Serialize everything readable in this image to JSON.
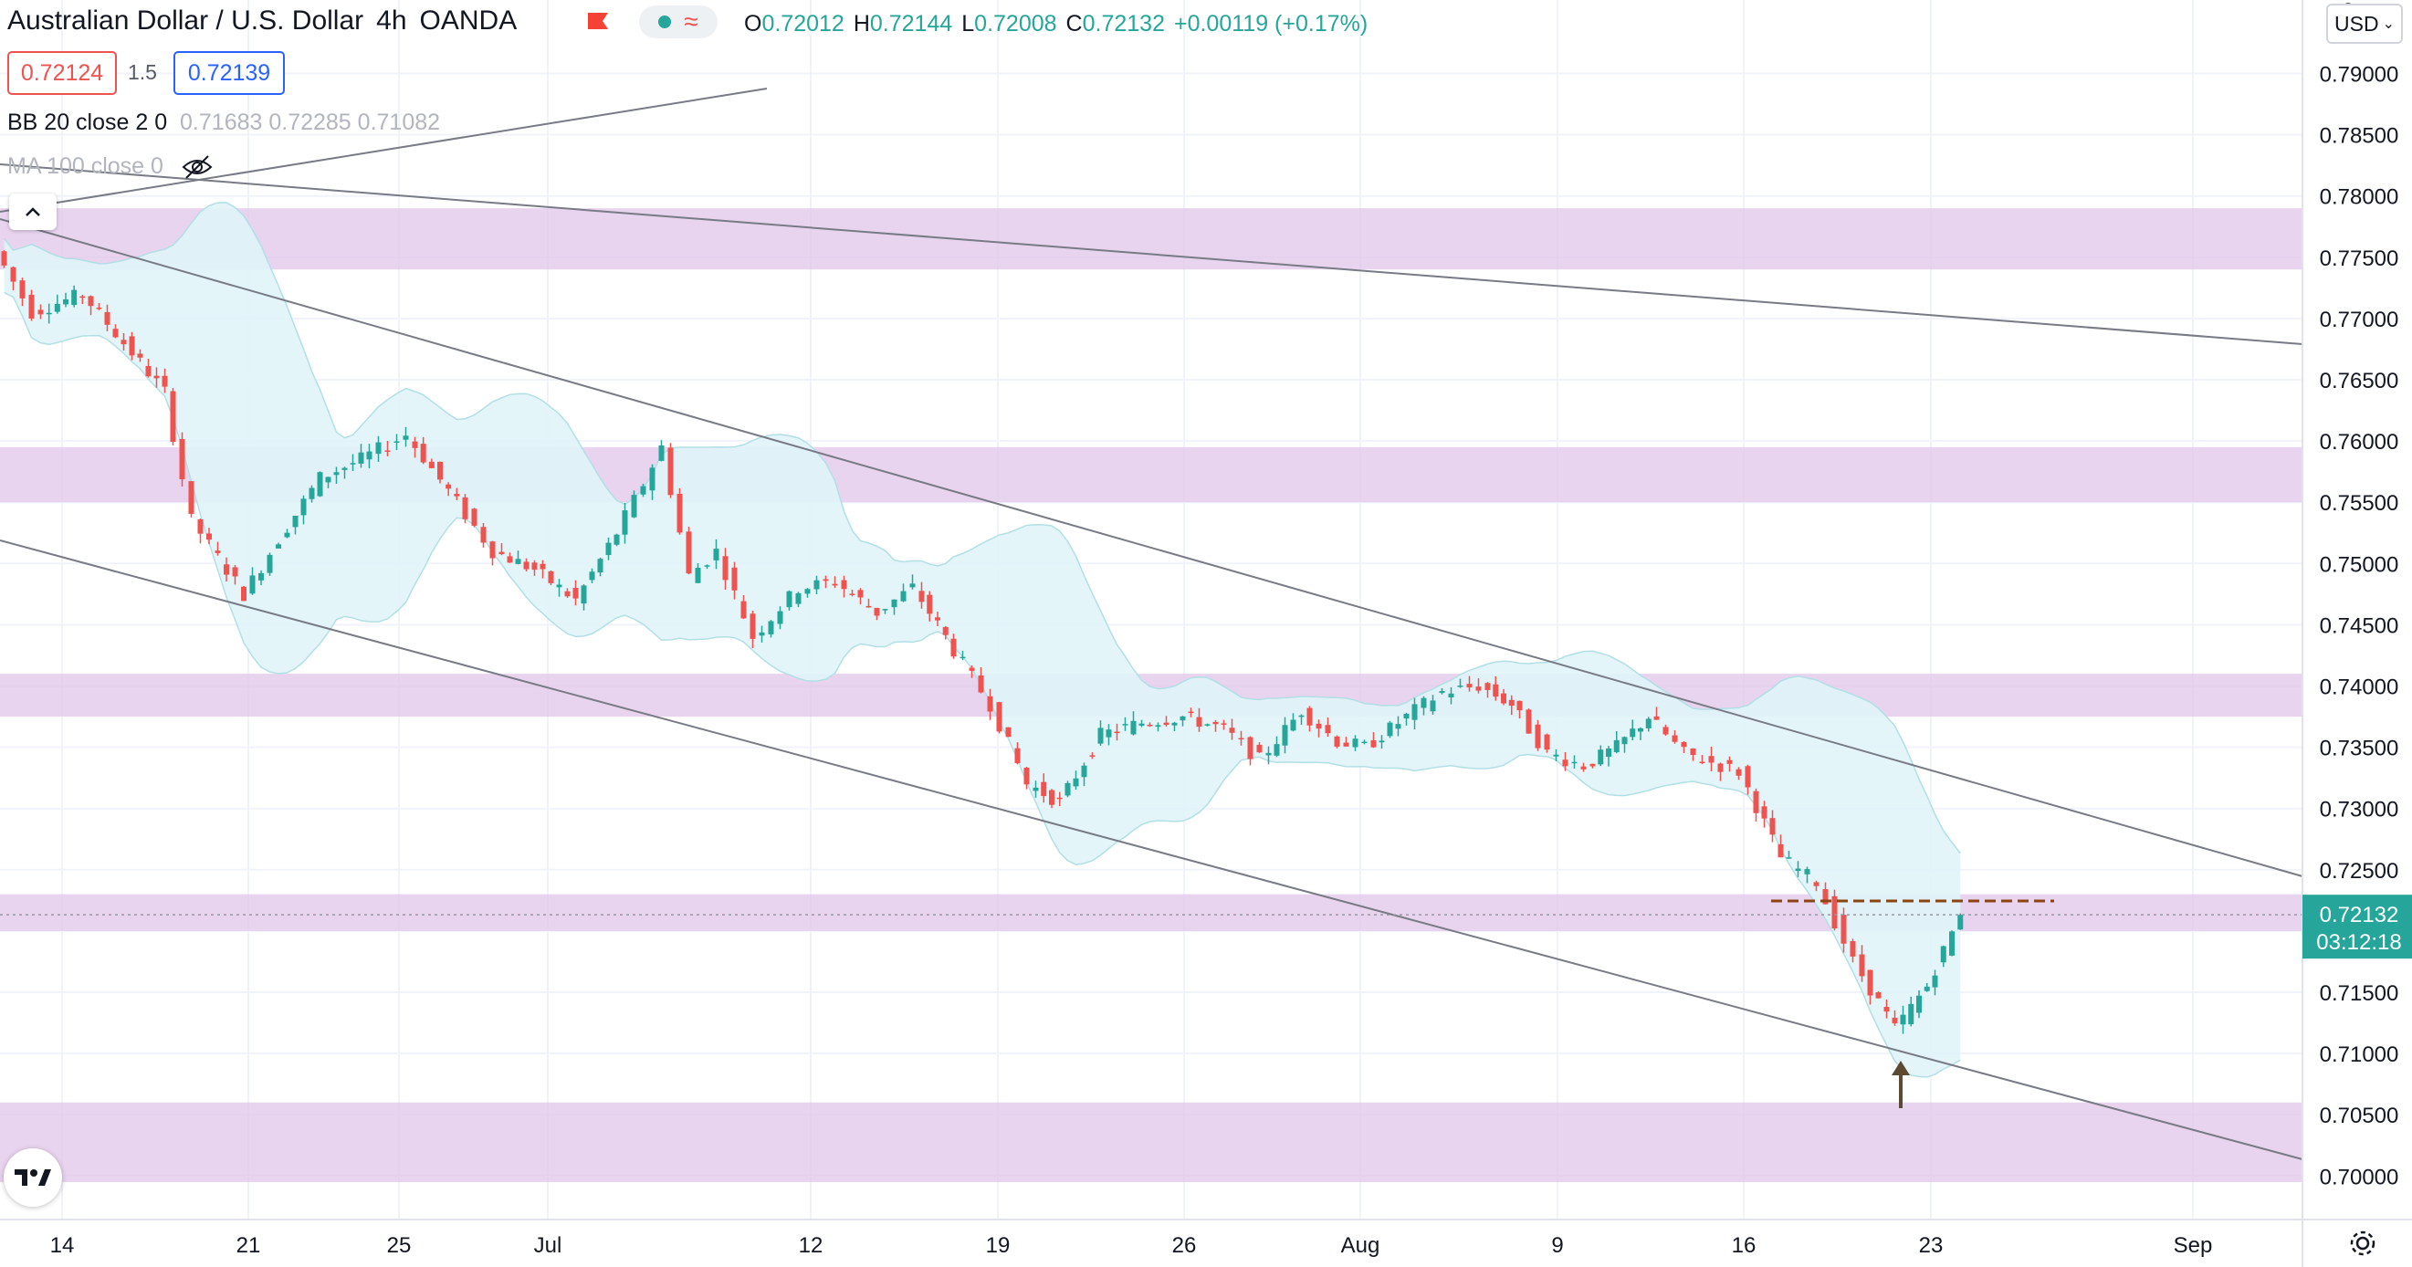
{
  "header": {
    "symbol_name": "Australian Dollar / U.S. Dollar",
    "interval": "4h",
    "exchange": "OANDA",
    "ohlc": {
      "o_label": "O",
      "o": "0.72012",
      "h_label": "H",
      "h": "0.72144",
      "l_label": "L",
      "l": "0.72008",
      "c_label": "C",
      "c": "0.72132",
      "change": "+0.00119 (+0.17%)"
    }
  },
  "trade": {
    "sell_price": "0.72124",
    "spread": "1.5",
    "buy_price": "0.72139"
  },
  "indicators": {
    "bb_label": "BB 20 close 2 0",
    "bb_values": "0.71683  0.72285  0.71082",
    "ma_label": "MA 100 close 0"
  },
  "price_axis": {
    "currency": "USD",
    "top_partial_label": "0",
    "ticks": [
      "0.79000",
      "0.78500",
      "0.78000",
      "0.77500",
      "0.77000",
      "0.76500",
      "0.76000",
      "0.75500",
      "0.75000",
      "0.74500",
      "0.74000",
      "0.73500",
      "0.73000",
      "0.72500",
      "0.72000",
      "0.71500",
      "0.71000",
      "0.70500",
      "0.70000"
    ],
    "current_price": "0.72132",
    "countdown": "03:12:18"
  },
  "time_axis": {
    "ticks": [
      "14",
      "21",
      "25",
      "Jul",
      "12",
      "19",
      "26",
      "Aug",
      "9",
      "16",
      "23",
      "Sep"
    ]
  },
  "icons": {
    "flag": "flag-icon",
    "toggle": "visibility-toggle-icon",
    "eye": "eye-off-icon",
    "collapse": "chevron-up-icon",
    "logo": "tradingview-logo-icon",
    "settings": "gear-icon"
  },
  "colors": {
    "up": "#26a69a",
    "down": "#ef5350",
    "zone": "#e1c6ea",
    "band_fill": "#e0f4f8",
    "trendline": "#787b86",
    "resistance": "#8b4513",
    "arrow": "#5c4a32"
  },
  "chart_data": {
    "type": "candlestick",
    "title": "Australian Dollar / U.S. Dollar",
    "timeframe": "4h",
    "yrange": [
      0.6965,
      0.7985
    ],
    "last_price": 0.72132,
    "x_ticks": [
      "14",
      "21",
      "25",
      "Jul",
      "12",
      "19",
      "26",
      "Aug",
      "9",
      "16",
      "23",
      "Sep"
    ],
    "candle_path": [
      {
        "t": "Jun 14",
        "p": 0.7755
      },
      {
        "t": "Jun 15",
        "p": 0.7705
      },
      {
        "t": "Jun 16",
        "p": 0.772
      },
      {
        "t": "Jun 17",
        "p": 0.768
      },
      {
        "t": "Jun 18",
        "p": 0.764
      },
      {
        "t": "Jun 19",
        "p": 0.7535
      },
      {
        "t": "Jun 21",
        "p": 0.7475
      },
      {
        "t": "Jun 22",
        "p": 0.752
      },
      {
        "t": "Jun 23",
        "p": 0.757
      },
      {
        "t": "Jun 24",
        "p": 0.7585
      },
      {
        "t": "Jun 25",
        "p": 0.7605
      },
      {
        "t": "Jun 28",
        "p": 0.755
      },
      {
        "t": "Jun 29",
        "p": 0.751
      },
      {
        "t": "Jun 30",
        "p": 0.7495
      },
      {
        "t": "Jul 1",
        "p": 0.747
      },
      {
        "t": "Jul 2",
        "p": 0.7525
      },
      {
        "t": "Jul 5",
        "p": 0.7565
      },
      {
        "t": "Jul 6",
        "p": 0.7595
      },
      {
        "t": "Jul 7",
        "p": 0.749
      },
      {
        "t": "Jul 8",
        "p": 0.751
      },
      {
        "t": "Jul 9",
        "p": 0.744
      },
      {
        "t": "Jul 12",
        "p": 0.748
      },
      {
        "t": "Jul 13",
        "p": 0.7485
      },
      {
        "t": "Jul 14",
        "p": 0.746
      },
      {
        "t": "Jul 15",
        "p": 0.748
      },
      {
        "t": "Jul 16",
        "p": 0.744
      },
      {
        "t": "Jul 19",
        "p": 0.7385
      },
      {
        "t": "Jul 20",
        "p": 0.732
      },
      {
        "t": "Jul 21",
        "p": 0.7305
      },
      {
        "t": "Jul 22",
        "p": 0.736
      },
      {
        "t": "Jul 23",
        "p": 0.737
      },
      {
        "t": "Jul 26",
        "p": 0.7375
      },
      {
        "t": "Jul 27",
        "p": 0.7365
      },
      {
        "t": "Jul 28",
        "p": 0.734
      },
      {
        "t": "Jul 29",
        "p": 0.738
      },
      {
        "t": "Jul 30",
        "p": 0.7355
      },
      {
        "t": "Aug 2",
        "p": 0.735
      },
      {
        "t": "Aug 3",
        "p": 0.7375
      },
      {
        "t": "Aug 4",
        "p": 0.7395
      },
      {
        "t": "Aug 5",
        "p": 0.74
      },
      {
        "t": "Aug 6",
        "p": 0.7385
      },
      {
        "t": "Aug 9",
        "p": 0.7345
      },
      {
        "t": "Aug 10",
        "p": 0.7335
      },
      {
        "t": "Aug 11",
        "p": 0.735
      },
      {
        "t": "Aug 12",
        "p": 0.7375
      },
      {
        "t": "Aug 13",
        "p": 0.7345
      },
      {
        "t": "Aug 16",
        "p": 0.733
      },
      {
        "t": "Aug 17",
        "p": 0.726
      },
      {
        "t": "Aug 18",
        "p": 0.724
      },
      {
        "t": "Aug 19",
        "p": 0.7175
      },
      {
        "t": "Aug 20",
        "p": 0.712
      },
      {
        "t": "Aug 23",
        "p": 0.7155
      },
      {
        "t": "Aug 24",
        "p": 0.7213
      }
    ],
    "support_resistance_zones": [
      [
        0.774,
        0.779
      ],
      [
        0.755,
        0.7595
      ],
      [
        0.7375,
        0.741
      ],
      [
        0.72,
        0.723
      ],
      [
        0.6995,
        0.706
      ]
    ],
    "resistance_level": 0.72245,
    "annotation": "up-arrow-at-low"
  }
}
